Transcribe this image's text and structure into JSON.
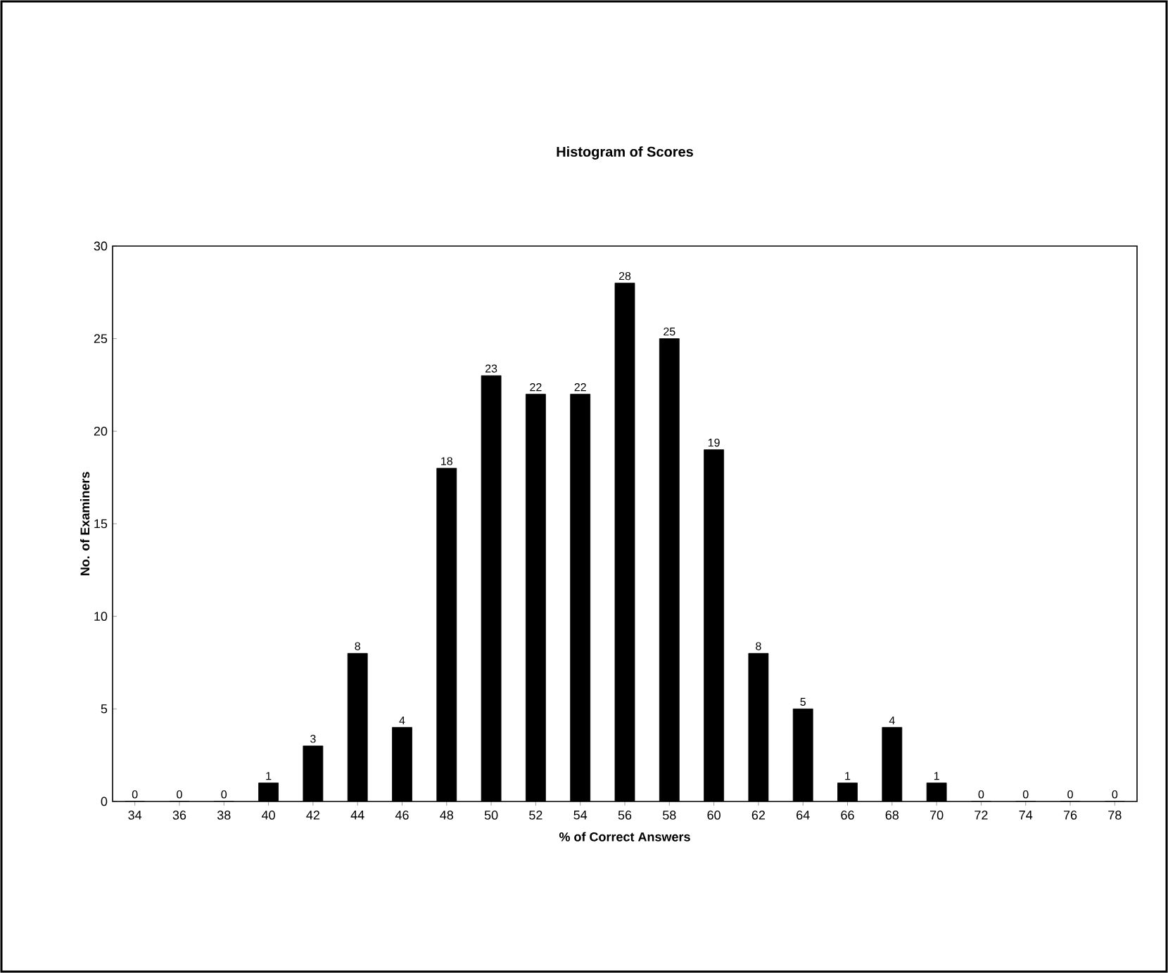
{
  "chart_data": {
    "type": "bar",
    "title": "Histogram of Scores",
    "xlabel": "% of Correct Answers",
    "ylabel": "No. of Examiners",
    "categories": [
      "34",
      "36",
      "38",
      "40",
      "42",
      "44",
      "46",
      "48",
      "50",
      "52",
      "54",
      "56",
      "58",
      "60",
      "62",
      "64",
      "66",
      "68",
      "70",
      "72",
      "74",
      "76",
      "78"
    ],
    "values": [
      0,
      0,
      0,
      1,
      3,
      8,
      4,
      18,
      23,
      22,
      22,
      28,
      25,
      19,
      8,
      5,
      1,
      4,
      1,
      0,
      0,
      0,
      0
    ],
    "color": "#000000",
    "ylim": [
      0,
      30
    ],
    "yticks": [
      0,
      5,
      10,
      15,
      20,
      25,
      30
    ],
    "grid": false,
    "data_labels": true
  }
}
